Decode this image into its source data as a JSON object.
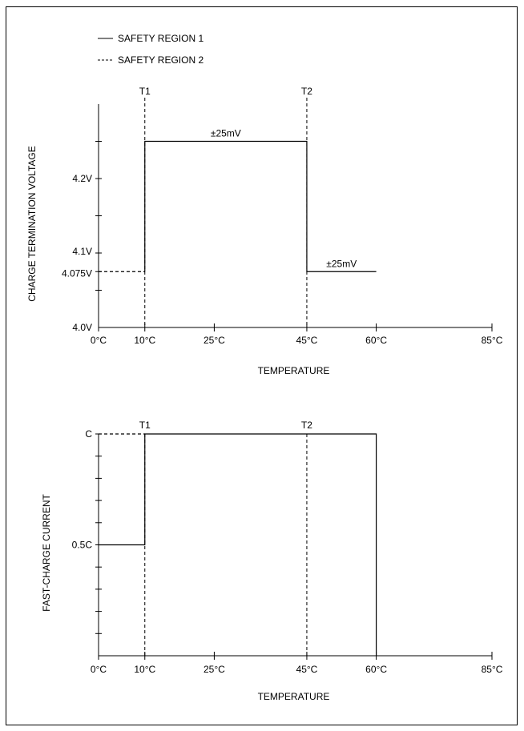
{
  "legend": {
    "items": [
      {
        "label": "SAFETY REGION 1",
        "style": "solid"
      },
      {
        "label": "SAFETY REGION 2",
        "style": "dashed"
      }
    ]
  },
  "chart_data": [
    {
      "type": "line",
      "ylabel": "CHARGE TERMINATION VOLTAGE",
      "xlabel": "TEMPERATURE",
      "x_ticks": [
        {
          "value": 0,
          "label": "0°C"
        },
        {
          "value": 10,
          "label": "10°C"
        },
        {
          "value": 25,
          "label": "25°C"
        },
        {
          "value": 45,
          "label": "45°C"
        },
        {
          "value": 60,
          "label": "60°C"
        },
        {
          "value": 85,
          "label": "85°C"
        }
      ],
      "y_ticks": [
        {
          "value": 4.0,
          "label": "4.0V"
        },
        {
          "value": 4.075,
          "label": "4.075V"
        },
        {
          "value": 4.1,
          "label": "4.1V"
        },
        {
          "value": 4.2,
          "label": "4.2V"
        }
      ],
      "xlim": [
        0,
        85
      ],
      "ylim": [
        4.0,
        4.3
      ],
      "minor_y_ticks": [
        4.05,
        4.15,
        4.25
      ],
      "vlines": [
        {
          "x": 10,
          "label": "T1"
        },
        {
          "x": 45,
          "label": "T2"
        }
      ],
      "series": [
        {
          "name": "SAFETY REGION 1",
          "style": "solid",
          "points": [
            [
              10,
              4.075
            ],
            [
              10,
              4.25
            ],
            [
              45,
              4.25
            ],
            [
              45,
              4.075
            ],
            [
              60,
              4.075
            ]
          ]
        },
        {
          "name": "SAFETY REGION 2",
          "style": "dashed",
          "points": [
            [
              0,
              4.075
            ],
            [
              10,
              4.075
            ]
          ]
        }
      ],
      "annotations": [
        {
          "text": "±25mV",
          "x": 27.5,
          "y": 4.25
        },
        {
          "text": "±25mV",
          "x": 52.5,
          "y": 4.075
        }
      ]
    },
    {
      "type": "line",
      "ylabel": "FAST-CHARGE CURRENT",
      "xlabel": "TEMPERATURE",
      "x_ticks": [
        {
          "value": 0,
          "label": "0°C"
        },
        {
          "value": 10,
          "label": "10°C"
        },
        {
          "value": 25,
          "label": "25°C"
        },
        {
          "value": 45,
          "label": "45°C"
        },
        {
          "value": 60,
          "label": "60°C"
        },
        {
          "value": 85,
          "label": "85°C"
        }
      ],
      "y_ticks": [
        {
          "value": 0.5,
          "label": "0.5C"
        },
        {
          "value": 1.0,
          "label": "C"
        }
      ],
      "xlim": [
        0,
        85
      ],
      "ylim": [
        0,
        1.0
      ],
      "minor_y_ticks": [
        0.1,
        0.2,
        0.3,
        0.4,
        0.6,
        0.7,
        0.8,
        0.9
      ],
      "vlines": [
        {
          "x": 10,
          "label": "T1"
        },
        {
          "x": 45,
          "label": "T2"
        }
      ],
      "series": [
        {
          "name": "SAFETY REGION 1",
          "style": "solid",
          "points": [
            [
              0,
              0.5
            ],
            [
              10,
              0.5
            ],
            [
              10,
              1.0
            ],
            [
              60,
              1.0
            ],
            [
              60,
              0
            ]
          ]
        },
        {
          "name": "SAFETY REGION 2",
          "style": "dashed",
          "points": [
            [
              0,
              1.0
            ],
            [
              10,
              1.0
            ]
          ]
        }
      ],
      "annotations": []
    }
  ]
}
